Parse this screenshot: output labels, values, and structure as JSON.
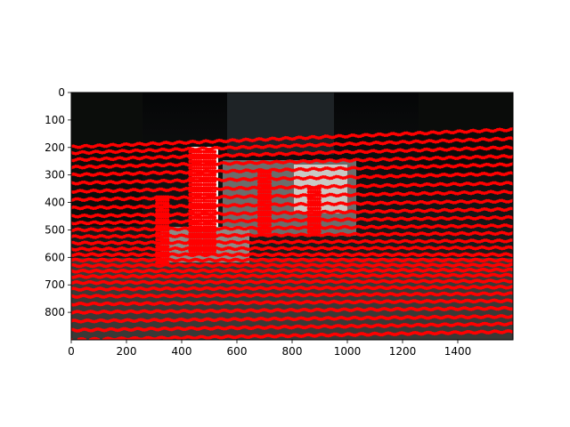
{
  "chart_data": {
    "type": "scatter",
    "title": "",
    "xlabel": "",
    "ylabel": "",
    "xlim": [
      0,
      1600
    ],
    "ylim": [
      900,
      0
    ],
    "x_ticks": [
      0,
      200,
      400,
      600,
      800,
      1000,
      1200,
      1400
    ],
    "y_ticks": [
      0,
      100,
      200,
      300,
      400,
      500,
      600,
      700,
      800
    ],
    "grid": false,
    "legend": "none",
    "background": "photo",
    "point_color": "#ff0000",
    "series": [
      {
        "scanlines": [
          {
            "y_left": 900,
            "y_right": 870,
            "x_start": 0,
            "x_end": 1600,
            "step": 7
          },
          {
            "y_left": 865,
            "y_right": 842,
            "x_start": 0,
            "x_end": 1600,
            "step": 7
          },
          {
            "y_left": 832,
            "y_right": 815,
            "x_start": 0,
            "x_end": 1600,
            "step": 7
          },
          {
            "y_left": 800,
            "y_right": 785,
            "x_start": 0,
            "x_end": 1600,
            "step": 7
          },
          {
            "y_left": 770,
            "y_right": 758,
            "x_start": 0,
            "x_end": 1600,
            "step": 7
          },
          {
            "y_left": 742,
            "y_right": 732,
            "x_start": 0,
            "x_end": 1600,
            "step": 7
          },
          {
            "y_left": 716,
            "y_right": 708,
            "x_start": 0,
            "x_end": 1600,
            "step": 7
          },
          {
            "y_left": 692,
            "y_right": 686,
            "x_start": 0,
            "x_end": 1600,
            "step": 7
          },
          {
            "y_left": 670,
            "y_right": 665,
            "x_start": 0,
            "x_end": 1600,
            "step": 7
          },
          {
            "y_left": 650,
            "y_right": 646,
            "x_start": 0,
            "x_end": 1600,
            "step": 7
          },
          {
            "y_left": 630,
            "y_right": 628,
            "x_start": 0,
            "x_end": 1600,
            "step": 7
          },
          {
            "y_left": 610,
            "y_right": 610,
            "x_start": 0,
            "x_end": 1600,
            "step": 7
          },
          {
            "y_left": 590,
            "y_right": 590,
            "x_start": 0,
            "x_end": 1600,
            "step": 7
          },
          {
            "y_left": 570,
            "y_right": 565,
            "x_start": 0,
            "x_end": 1600,
            "step": 8
          },
          {
            "y_left": 548,
            "y_right": 540,
            "x_start": 0,
            "x_end": 1600,
            "step": 8
          },
          {
            "y_left": 525,
            "y_right": 512,
            "x_start": 0,
            "x_end": 1600,
            "step": 8
          },
          {
            "y_left": 500,
            "y_right": 485,
            "x_start": 0,
            "x_end": 1600,
            "step": 8
          },
          {
            "y_left": 475,
            "y_right": 455,
            "x_start": 0,
            "x_end": 1600,
            "step": 8
          },
          {
            "y_left": 450,
            "y_right": 425,
            "x_start": 0,
            "x_end": 1600,
            "step": 8
          },
          {
            "y_left": 420,
            "y_right": 395,
            "x_start": 0,
            "x_end": 1600,
            "step": 8
          },
          {
            "y_left": 390,
            "y_right": 362,
            "x_start": 0,
            "x_end": 1600,
            "step": 8
          },
          {
            "y_left": 360,
            "y_right": 330,
            "x_start": 0,
            "x_end": 1600,
            "step": 8
          },
          {
            "y_left": 330,
            "y_right": 295,
            "x_start": 0,
            "x_end": 1600,
            "step": 8
          },
          {
            "y_left": 300,
            "y_right": 262,
            "x_start": 0,
            "x_end": 1600,
            "step": 8
          },
          {
            "y_left": 272,
            "y_right": 232,
            "x_start": 0,
            "x_end": 1600,
            "step": 8
          },
          {
            "y_left": 245,
            "y_right": 200,
            "x_start": 0,
            "x_end": 1600,
            "step": 8
          },
          {
            "y_left": 220,
            "y_right": 168,
            "x_start": 0,
            "x_end": 1600,
            "step": 8
          },
          {
            "y_left": 198,
            "y_right": 135,
            "x_start": 0,
            "x_end": 1600,
            "step": 8
          }
        ],
        "column_clusters": [
          {
            "x": 450,
            "y_start": 215,
            "y_end": 590
          },
          {
            "x": 500,
            "y_start": 215,
            "y_end": 590
          },
          {
            "x": 330,
            "y_start": 380,
            "y_end": 620
          },
          {
            "x": 700,
            "y_start": 290,
            "y_end": 520
          },
          {
            "x": 880,
            "y_start": 350,
            "y_end": 520
          }
        ]
      }
    ]
  }
}
